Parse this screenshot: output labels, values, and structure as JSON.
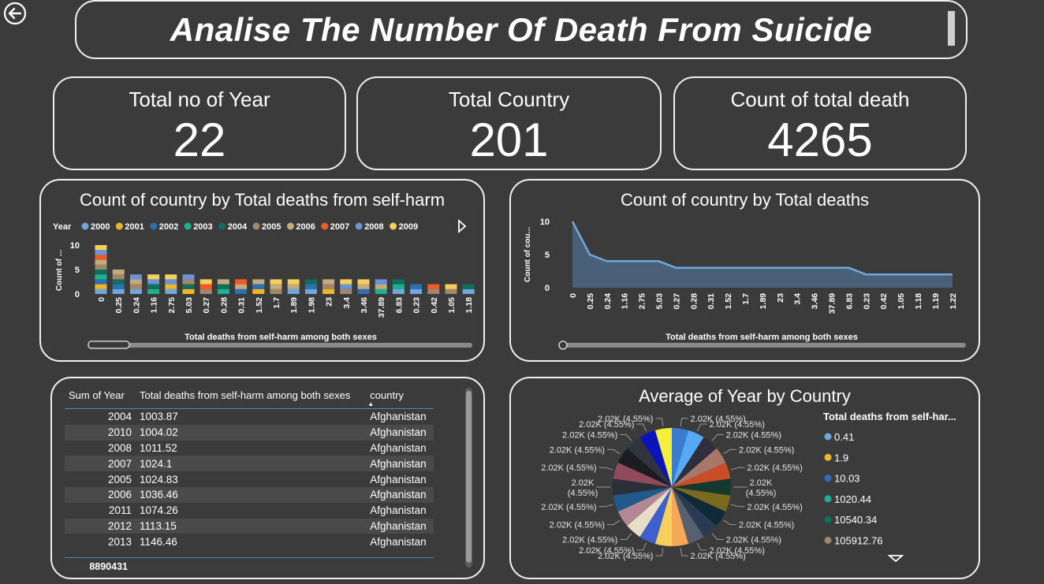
{
  "header": {
    "title": "Analise The Number Of Death From Suicide"
  },
  "kpis": [
    {
      "label": "Total no of Year",
      "value": "22"
    },
    {
      "label": "Total Country",
      "value": "201"
    },
    {
      "label": "Count of total death",
      "value": "4265"
    }
  ],
  "colors": {
    "background": "#3b3b3b",
    "area_fill": "#4a6078",
    "area_line": "#6fa8dc"
  },
  "chart_data": [
    {
      "type": "bar",
      "title": "Count of country by Total deaths from self-harm",
      "xlabel": "Total deaths from self-harm among both sexes",
      "ylabel": "Count of ...",
      "legend_title": "Year",
      "legend": [
        {
          "name": "2000",
          "color": "#6fa8dc"
        },
        {
          "name": "2001",
          "color": "#f1b52c"
        },
        {
          "name": "2002",
          "color": "#2e6fb2"
        },
        {
          "name": "2003",
          "color": "#21b08e"
        },
        {
          "name": "2004",
          "color": "#0f6f5d"
        },
        {
          "name": "2005",
          "color": "#a6866a"
        },
        {
          "name": "2006",
          "color": "#c2ab7e"
        },
        {
          "name": "2007",
          "color": "#f05a28"
        },
        {
          "name": "2008",
          "color": "#6a93d8"
        },
        {
          "name": "2009",
          "color": "#f6d05a"
        }
      ],
      "legend_placement": "top",
      "categories": [
        "0",
        "0.25",
        "0.24",
        "1.16",
        "2.75",
        "5.03",
        "0.27",
        "0.28",
        "0.31",
        "1.52",
        "1.7",
        "1.89",
        "1.98",
        "23",
        "3.4",
        "3.46",
        "37.89",
        "6.83",
        "0.23",
        "0.42",
        "1.05",
        "1.18"
      ],
      "stacks": [
        [
          1,
          1,
          1,
          1,
          1,
          1,
          1,
          1,
          1,
          1
        ],
        [
          1,
          0,
          1,
          0,
          1,
          1,
          1,
          0,
          0,
          0
        ],
        [
          1,
          0,
          0,
          0,
          0,
          1,
          1,
          0,
          1,
          0
        ],
        [
          0,
          0,
          0,
          1,
          1,
          0,
          0,
          0,
          1,
          1
        ],
        [
          1,
          1,
          0,
          0,
          0,
          0,
          0,
          0,
          1,
          1
        ],
        [
          0,
          1,
          0,
          0,
          1,
          1,
          0,
          0,
          1,
          0
        ],
        [
          0,
          0,
          0,
          0,
          0,
          1,
          0,
          1,
          0,
          1
        ],
        [
          0,
          0,
          0,
          1,
          1,
          0,
          1,
          0,
          0,
          0
        ],
        [
          0,
          0,
          1,
          0,
          0,
          0,
          1,
          1,
          0,
          0
        ],
        [
          0,
          1,
          1,
          0,
          0,
          0,
          1,
          0,
          0,
          0
        ],
        [
          0,
          0,
          0,
          0,
          0,
          1,
          1,
          0,
          0,
          1
        ],
        [
          1,
          0,
          0,
          0,
          0,
          0,
          1,
          0,
          0,
          1
        ],
        [
          1,
          0,
          1,
          0,
          1,
          0,
          0,
          0,
          0,
          0
        ],
        [
          0,
          1,
          0,
          0,
          0,
          1,
          1,
          0,
          0,
          0
        ],
        [
          0,
          0,
          0,
          0,
          0,
          1,
          0,
          0,
          1,
          1
        ],
        [
          0,
          0,
          1,
          0,
          0,
          0,
          1,
          0,
          0,
          1
        ],
        [
          0,
          0,
          0,
          1,
          0,
          0,
          1,
          0,
          1,
          0
        ],
        [
          1,
          0,
          0,
          1,
          1,
          0,
          0,
          0,
          0,
          0
        ],
        [
          1,
          0,
          1,
          0,
          0,
          0,
          0,
          0,
          0,
          0
        ],
        [
          0,
          0,
          0,
          0,
          0,
          1,
          0,
          1,
          0,
          0
        ],
        [
          0,
          0,
          0,
          0,
          0,
          1,
          0,
          0,
          0,
          1
        ],
        [
          1,
          0,
          0,
          0,
          1,
          0,
          0,
          0,
          0,
          0
        ]
      ],
      "yticks": [
        0,
        5,
        10
      ],
      "ylim": [
        0,
        10
      ]
    },
    {
      "type": "area",
      "title": "Count of country by Total deaths",
      "xlabel": "Total deaths from self-harm among both sexes",
      "ylabel": "Count of cou...",
      "categories": [
        "0",
        "0.25",
        "0.24",
        "1.16",
        "2.75",
        "5.03",
        "0.27",
        "0.28",
        "0.31",
        "1.52",
        "1.7",
        "1.89",
        "23",
        "3.4",
        "3.46",
        "37.89",
        "6.83",
        "0.23",
        "0.42",
        "1.05",
        "1.18",
        "1.19",
        "1.22"
      ],
      "values": [
        10,
        5,
        4,
        4,
        4,
        4,
        3,
        3,
        3,
        3,
        3,
        3,
        3,
        3,
        3,
        3,
        3,
        2,
        2,
        2,
        2,
        2,
        2
      ],
      "yticks": [
        0,
        5,
        10
      ],
      "ylim": [
        0,
        10
      ]
    },
    {
      "type": "table",
      "columns": [
        "Sum of Year",
        "Total deaths from self-harm among both sexes",
        "country"
      ],
      "rows": [
        [
          "2004",
          "1003.87",
          "Afghanistan"
        ],
        [
          "2010",
          "1004.02",
          "Afghanistan"
        ],
        [
          "2008",
          "1011.52",
          "Afghanistan"
        ],
        [
          "2007",
          "1024.1",
          "Afghanistan"
        ],
        [
          "2005",
          "1024.83",
          "Afghanistan"
        ],
        [
          "2006",
          "1036.46",
          "Afghanistan"
        ],
        [
          "2011",
          "1074.26",
          "Afghanistan"
        ],
        [
          "2012",
          "1113.15",
          "Afghanistan"
        ],
        [
          "2013",
          "1146.46",
          "Afghanistan"
        ]
      ],
      "total": "8890431"
    },
    {
      "type": "pie",
      "title": "Average of Year by Country",
      "legend_title": "Total deaths from self-har...",
      "legend_placement": "right",
      "legend": [
        {
          "name": "0.41",
          "color": "#6fa8dc"
        },
        {
          "name": "1.9",
          "color": "#f1b52c"
        },
        {
          "name": "10.03",
          "color": "#2e6fb2"
        },
        {
          "name": "1020.44",
          "color": "#21b08e"
        },
        {
          "name": "10540.34",
          "color": "#0f6f5d"
        },
        {
          "name": "105912.76",
          "color": "#a6866a"
        }
      ],
      "slice_label": "2.02K (4.55%)",
      "slice_label_top": "2.02K",
      "slice_label_bottom": "(4.55%)",
      "values": [
        2020,
        2020,
        2020,
        2020,
        2020,
        2020,
        2020,
        2020,
        2020,
        2020,
        2020,
        2020,
        2020,
        2020,
        2020,
        2020,
        2020,
        2020,
        2020,
        2020,
        2020,
        2020
      ],
      "colors": [
        "#3a7dd0",
        "#55a9f5",
        "#2e2e3c",
        "#a8776a",
        "#c94d26",
        "#143a2f",
        "#7a6a1e",
        "#0f2a36",
        "#2a3a52",
        "#56606e",
        "#f5a858",
        "#f6d05a",
        "#3f5fcf",
        "#e8ddc6",
        "#b48795",
        "#1f5a8a",
        "#2a2f38",
        "#8f4a5c",
        "#1c1c22",
        "#30343e",
        "#0b14b8",
        "#f4ef3a"
      ]
    }
  ]
}
